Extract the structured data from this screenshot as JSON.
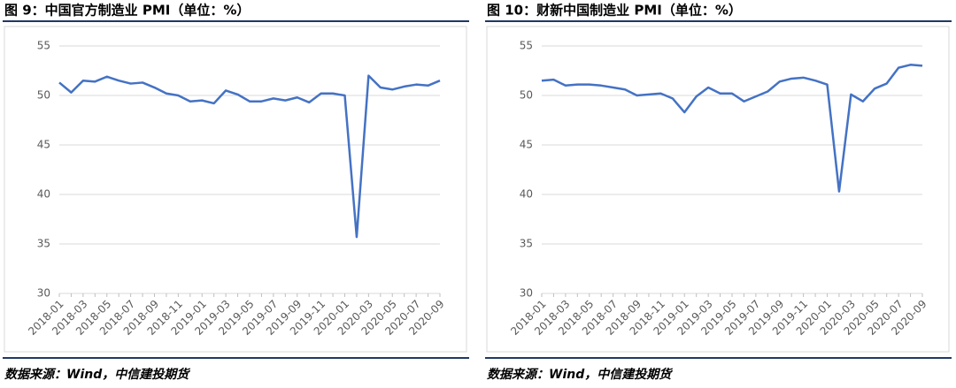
{
  "chart_data": [
    {
      "type": "line",
      "title": "图 9：中国官方制造业 PMI（单位：%）",
      "source": "数据来源：Wind，中信建投期货",
      "categories": [
        "2018-01",
        null,
        "2018-03",
        null,
        "2018-05",
        null,
        "2018-07",
        null,
        "2018-09",
        null,
        "2018-11",
        null,
        "2019-01",
        null,
        "2019-03",
        null,
        "2019-05",
        null,
        "2019-07",
        null,
        "2019-09",
        null,
        "2019-11",
        null,
        "2020-01",
        null,
        "2020-03",
        null,
        "2020-05",
        null,
        "2020-07",
        null,
        "2020-09"
      ],
      "values": [
        51.3,
        50.3,
        51.5,
        51.4,
        51.9,
        51.5,
        51.2,
        51.3,
        50.8,
        50.2,
        50.0,
        49.4,
        49.5,
        49.2,
        50.5,
        50.1,
        49.4,
        49.4,
        49.7,
        49.5,
        49.8,
        49.3,
        50.2,
        50.2,
        50.0,
        35.7,
        52.0,
        50.8,
        50.6,
        50.9,
        51.1,
        51.0,
        51.5
      ],
      "color": "#4472c4",
      "ylim": [
        30,
        55
      ],
      "yticks": [
        30,
        35,
        40,
        45,
        50,
        55
      ],
      "grid": true
    },
    {
      "type": "line",
      "title": "图 10：财新中国制造业 PMI（单位：%）",
      "source": "数据来源：Wind，中信建投期货",
      "categories": [
        "2018-01",
        null,
        "2018-03",
        null,
        "2018-05",
        null,
        "2018-07",
        null,
        "2018-09",
        null,
        "2018-11",
        null,
        "2019-01",
        null,
        "2019-03",
        null,
        "2019-05",
        null,
        "2019-07",
        null,
        "2019-09",
        null,
        "2019-11",
        null,
        "2020-01",
        null,
        "2020-03",
        null,
        "2020-05",
        null,
        "2020-07",
        null,
        "2020-09"
      ],
      "values": [
        51.5,
        51.6,
        51.0,
        51.1,
        51.1,
        51.0,
        50.8,
        50.6,
        50.0,
        50.1,
        50.2,
        49.7,
        48.3,
        49.9,
        50.8,
        50.2,
        50.2,
        49.4,
        49.9,
        50.4,
        51.4,
        51.7,
        51.8,
        51.5,
        51.1,
        40.3,
        50.1,
        49.4,
        50.7,
        51.2,
        52.8,
        53.1,
        53.0
      ],
      "color": "#4472c4",
      "ylim": [
        30,
        55
      ],
      "yticks": [
        30,
        35,
        40,
        45,
        50,
        55
      ],
      "grid": true
    }
  ]
}
